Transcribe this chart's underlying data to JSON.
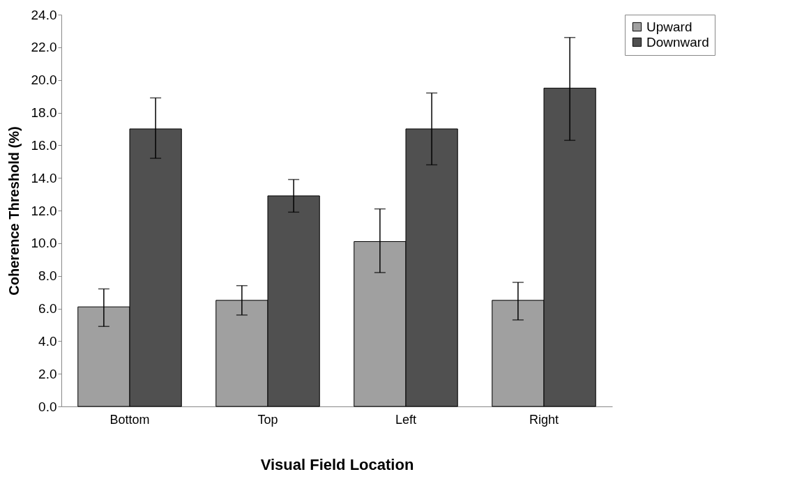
{
  "chart_data": {
    "type": "bar",
    "xlabel": "Visual Field Location",
    "ylabel": "Coherence Threshold (%)",
    "categories": [
      "Bottom",
      "Top",
      "Left",
      "Right"
    ],
    "series": [
      {
        "name": "Upward",
        "color": "#a0a0a0",
        "values": [
          6.1,
          6.5,
          10.1,
          6.5
        ],
        "errors": [
          [
            4.9,
            7.2
          ],
          [
            5.6,
            7.4
          ],
          [
            8.2,
            12.1
          ],
          [
            5.3,
            7.6
          ]
        ]
      },
      {
        "name": "Downward",
        "color": "#505050",
        "values": [
          17.0,
          12.9,
          17.0,
          19.5
        ],
        "errors": [
          [
            15.2,
            18.9
          ],
          [
            11.9,
            13.9
          ],
          [
            14.8,
            19.2
          ],
          [
            16.3,
            22.6
          ]
        ]
      }
    ],
    "ylim": [
      0,
      24
    ],
    "yticks": [
      {
        "value": 0,
        "label": "0.0"
      },
      {
        "value": 2,
        "label": "2.0"
      },
      {
        "value": 4,
        "label": "4.0"
      },
      {
        "value": 6,
        "label": "6.0"
      },
      {
        "value": 8,
        "label": "8.0"
      },
      {
        "value": 10,
        "label": "10.0"
      },
      {
        "value": 12,
        "label": "12.0"
      },
      {
        "value": 14,
        "label": "14.0"
      },
      {
        "value": 16,
        "label": "16.0"
      },
      {
        "value": 18,
        "label": "18.0"
      },
      {
        "value": 20,
        "label": "20.0"
      },
      {
        "value": 22,
        "label": "22.0"
      },
      {
        "value": 24,
        "label": "24.0"
      }
    ],
    "grid": false,
    "legend": "right"
  }
}
